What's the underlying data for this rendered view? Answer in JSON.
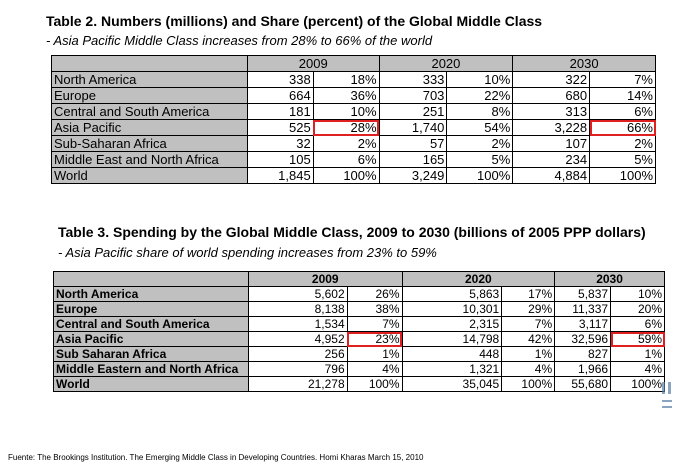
{
  "table2": {
    "title": "Table 2. Numbers (millions) and Share (percent) of the Global Middle Class",
    "subtitle": "- Asia Pacific Middle Class increases from 28% to 66% of the world",
    "years": [
      "2009",
      "2020",
      "2030"
    ],
    "rows": [
      {
        "label": "North America",
        "values": [
          "338",
          "18%",
          "333",
          "10%",
          "322",
          "7%"
        ]
      },
      {
        "label": "Europe",
        "values": [
          "664",
          "36%",
          "703",
          "22%",
          "680",
          "14%"
        ]
      },
      {
        "label": "Central and South America",
        "values": [
          "181",
          "10%",
          "251",
          "8%",
          "313",
          "6%"
        ]
      },
      {
        "label": "Asia Pacific",
        "values": [
          "525",
          "28%",
          "1,740",
          "54%",
          "3,228",
          "66%"
        ]
      },
      {
        "label": "Sub-Saharan Africa",
        "values": [
          "32",
          "2%",
          "57",
          "2%",
          "107",
          "2%"
        ]
      },
      {
        "label": "Middle East and North Africa",
        "values": [
          "105",
          "6%",
          "165",
          "5%",
          "234",
          "5%"
        ]
      },
      {
        "label": "World",
        "values": [
          "1,845",
          "100%",
          "3,249",
          "100%",
          "4,884",
          "100%"
        ]
      }
    ]
  },
  "table3": {
    "title": "Table 3. Spending by the Global Middle Class, 2009 to 2030 (billions of 2005 PPP dollars)",
    "subtitle": "- Asia Pacific share of world spending increases from 23% to 59%",
    "years": [
      "2009",
      "2020",
      "2030"
    ],
    "rows": [
      {
        "label": "North America",
        "values": [
          "5,602",
          "26%",
          "5,863",
          "17%",
          "5,837",
          "10%"
        ]
      },
      {
        "label": "Europe",
        "values": [
          "8,138",
          "38%",
          "10,301",
          "29%",
          "11,337",
          "20%"
        ]
      },
      {
        "label": "Central and South America",
        "values": [
          "1,534",
          "7%",
          "2,315",
          "7%",
          "3,117",
          "6%"
        ]
      },
      {
        "label": "Asia Pacific",
        "values": [
          "4,952",
          "23%",
          "14,798",
          "42%",
          "32,596",
          "59%"
        ]
      },
      {
        "label": "Sub Saharan Africa",
        "values": [
          "256",
          "1%",
          "448",
          "1%",
          "827",
          "1%"
        ]
      },
      {
        "label": "Middle Eastern and North Africa",
        "values": [
          "796",
          "4%",
          "1,321",
          "4%",
          "1,966",
          "4%"
        ]
      },
      {
        "label": "World",
        "values": [
          "21,278",
          "100%",
          "35,045",
          "100%",
          "55,680",
          "100%"
        ]
      }
    ]
  },
  "footer": "Fuente: The Brookings Institution. The Emerging Middle Class in Developing Countries. Homi Kharas March 15, 2010",
  "highlight_color": "#e02020"
}
